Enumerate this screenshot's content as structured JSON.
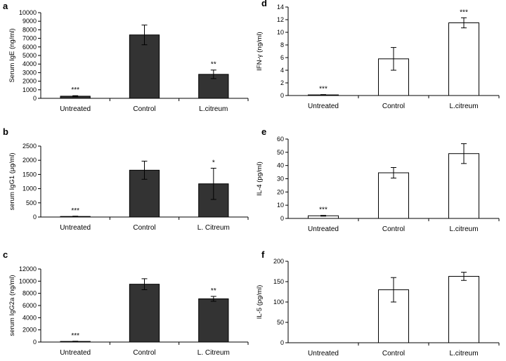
{
  "figure": {
    "colors": {
      "dark_bar": "#333333",
      "light_bar": "#ffffff",
      "axis": "#000000"
    }
  },
  "chart_data": [
    {
      "panel": "a",
      "type": "bar",
      "style": "dark",
      "ylabel": "Serum IgE (ng/ml)",
      "ylim": [
        0,
        10000
      ],
      "ticks": [
        0,
        1000,
        2000,
        3000,
        4000,
        5000,
        6000,
        7000,
        8000,
        9000,
        10000
      ],
      "categories": [
        "Untreated",
        "Control",
        "L.citreum"
      ],
      "values": [
        250,
        7400,
        2800
      ],
      "errors": [
        60,
        1150,
        500
      ],
      "annotations": [
        "***",
        "",
        "**"
      ]
    },
    {
      "panel": "b",
      "type": "bar",
      "style": "dark",
      "ylabel": "serum IgG1 (μg/ml)",
      "ylim": [
        0,
        2500
      ],
      "ticks": [
        0,
        500,
        1000,
        1500,
        2000,
        2500
      ],
      "categories": [
        "Untreated",
        "Control",
        "L. Citreum"
      ],
      "values": [
        20,
        1650,
        1170
      ],
      "errors": [
        10,
        320,
        550
      ],
      "annotations": [
        "***",
        "",
        "*"
      ]
    },
    {
      "panel": "c",
      "type": "bar",
      "style": "dark",
      "ylabel": "serum IgG2a (ng/ml)",
      "ylim": [
        0,
        12000
      ],
      "ticks": [
        0,
        2000,
        4000,
        6000,
        8000,
        10000,
        12000
      ],
      "categories": [
        "Untreated",
        "Control",
        "L. Citreum"
      ],
      "values": [
        100,
        9500,
        7100
      ],
      "errors": [
        40,
        900,
        400
      ],
      "annotations": [
        "***",
        "",
        "**"
      ]
    },
    {
      "panel": "d",
      "type": "bar",
      "style": "light",
      "ylabel": "IFN-γ (ng/ml)",
      "ylim": [
        0,
        14
      ],
      "ticks": [
        0,
        2,
        4,
        6,
        8,
        10,
        12,
        14
      ],
      "categories": [
        "Untreated",
        "Control",
        "L.citreum"
      ],
      "values": [
        0.1,
        5.8,
        11.5
      ],
      "errors": [
        0.05,
        1.8,
        0.8
      ],
      "annotations": [
        "***",
        "",
        "***"
      ]
    },
    {
      "panel": "e",
      "type": "bar",
      "style": "light",
      "ylabel": "IL-4 (pg/ml)",
      "ylim": [
        0,
        60
      ],
      "ticks": [
        0,
        10,
        20,
        30,
        40,
        50,
        60
      ],
      "categories": [
        "Untreated",
        "Control",
        "L.citreum"
      ],
      "values": [
        2,
        34.5,
        49
      ],
      "errors": [
        0.3,
        4,
        7.5
      ],
      "annotations": [
        "***",
        "",
        ""
      ]
    },
    {
      "panel": "f",
      "type": "bar",
      "style": "light",
      "ylabel": "IL-5 (pg/ml)",
      "ylim": [
        0,
        200
      ],
      "ticks": [
        0,
        50,
        100,
        150,
        200
      ],
      "categories": [
        "Untreated",
        "Control",
        "L.citreum"
      ],
      "values": [
        0,
        130,
        163
      ],
      "errors": [
        0,
        30,
        10
      ],
      "annotations": [
        "",
        "",
        ""
      ]
    }
  ]
}
